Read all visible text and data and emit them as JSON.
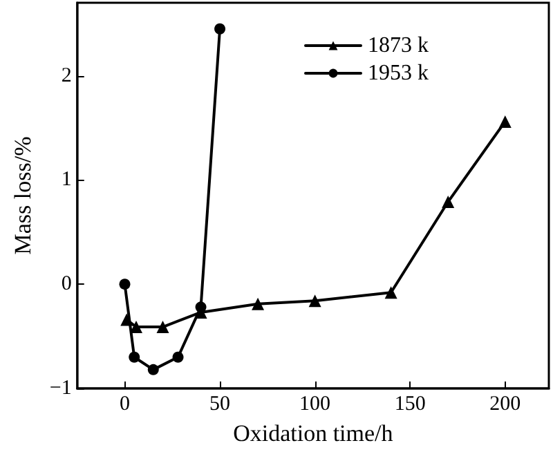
{
  "chart_data": {
    "type": "line",
    "xlabel": "Oxidation time/h",
    "ylabel": "Mass loss/%",
    "xlim": [
      -25,
      223
    ],
    "xticks": [
      0,
      50,
      100,
      150,
      200
    ],
    "ylim": [
      -1,
      2.7
    ],
    "yticks": [
      -1,
      0,
      1,
      2
    ],
    "legend": "top right",
    "grid": false,
    "line_style": "solid",
    "series": [
      {
        "name": "1873 k",
        "color": "#000000",
        "marker": "triangle",
        "x": [
          1,
          6,
          20,
          40,
          70,
          100,
          140,
          170,
          200
        ],
        "values": [
          -0.34,
          -0.41,
          -0.41,
          -0.27,
          -0.19,
          -0.16,
          -0.08,
          0.79,
          1.56
        ]
      },
      {
        "name": "1953 k",
        "color": "#000000",
        "marker": "circle",
        "x": [
          0,
          5,
          15,
          28,
          40,
          50
        ],
        "values": [
          0,
          -0.7,
          -0.82,
          -0.7,
          -0.22,
          2.45
        ]
      }
    ]
  }
}
